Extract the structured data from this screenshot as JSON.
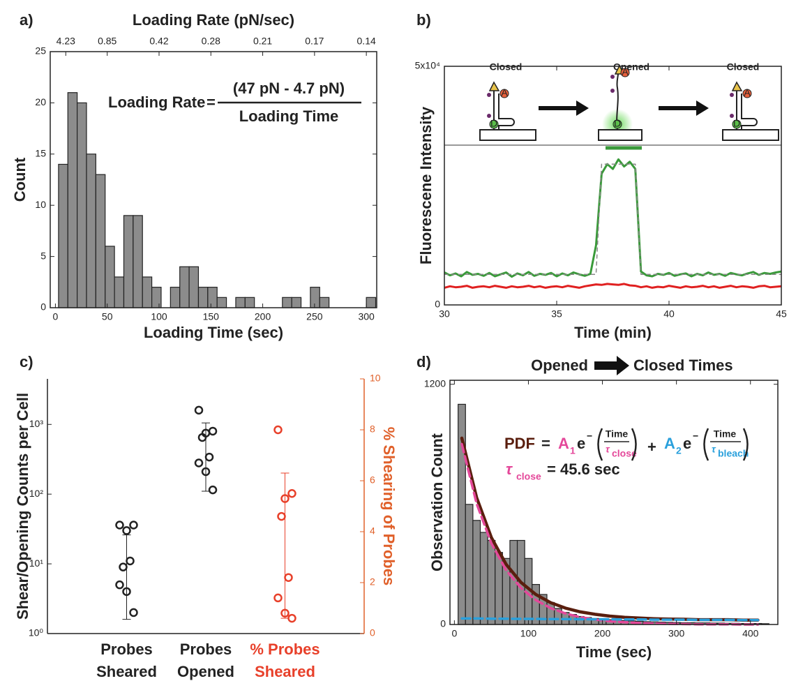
{
  "chart_data": [
    {
      "type": "histogram",
      "panel_label": "a)",
      "xlabel": "Loading Time (sec)",
      "ylabel": "Count",
      "x2label": "Loading Rate (pN/sec)",
      "formula": {
        "lhs": "Loading Rate",
        "eq": "=",
        "numerator": "(47 pN - 4.7 pN)",
        "denominator": "Loading Time"
      },
      "bins": [
        3,
        12,
        21,
        30,
        39,
        48,
        57,
        66,
        75,
        84,
        93,
        102,
        111,
        120,
        129,
        138,
        147,
        156,
        165,
        174,
        183,
        192,
        201,
        210,
        219,
        228,
        237,
        246,
        255,
        264,
        273,
        282,
        291,
        300,
        309
      ],
      "counts": [
        14,
        21,
        20,
        15,
        13,
        6,
        3,
        9,
        9,
        3,
        2,
        0,
        2,
        4,
        4,
        2,
        2,
        1,
        0,
        1,
        1,
        0,
        0,
        0,
        1,
        1,
        0,
        2,
        1,
        0,
        0,
        0,
        0,
        1
      ],
      "color": "#8c8c8c",
      "xlim": [
        -5,
        310
      ],
      "ylim": [
        0,
        25
      ],
      "xticks": [
        0,
        50,
        100,
        150,
        200,
        250,
        300
      ],
      "yticks": [
        0,
        5,
        10,
        15,
        20,
        25
      ],
      "x2ticks": [
        {
          "value": 10,
          "label": "4.23"
        },
        {
          "value": 50,
          "label": "0.85"
        },
        {
          "value": 100,
          "label": "0.42"
        },
        {
          "value": 150,
          "label": "0.28"
        },
        {
          "value": 200,
          "label": "0.21"
        },
        {
          "value": 250,
          "label": "0.17"
        },
        {
          "value": 300,
          "label": "0.14"
        }
      ]
    },
    {
      "type": "line",
      "panel_label": "b)",
      "xlabel": "Time (min)",
      "ylabel": "Fluorescene Intensity",
      "inset_labels": [
        "Closed",
        "Opened",
        "Closed"
      ],
      "fluorophore_labels": [
        "A",
        "D"
      ],
      "x": [
        30,
        30.25,
        30.5,
        30.75,
        31,
        31.25,
        31.5,
        31.75,
        32,
        32.25,
        32.5,
        32.75,
        33,
        33.25,
        33.5,
        33.75,
        34,
        34.25,
        34.5,
        34.75,
        35,
        35.25,
        35.5,
        35.75,
        36,
        36.25,
        36.5,
        36.75,
        37,
        37.25,
        37.5,
        37.75,
        38,
        38.25,
        38.5,
        38.75,
        39,
        39.25,
        39.5,
        39.75,
        40,
        40.25,
        40.5,
        40.75,
        41,
        41.25,
        41.5,
        41.75,
        42,
        42.25,
        42.5,
        42.75,
        43,
        43.25,
        43.5,
        43.75,
        44,
        44.25,
        44.5,
        44.75,
        45
      ],
      "xlim": [
        30,
        45
      ],
      "ylim": [
        0,
        50000
      ],
      "xticks": [
        30,
        35,
        40,
        45
      ],
      "yticks": [
        0,
        {
          "value": 50000,
          "label": "5x10⁴"
        }
      ],
      "series": [
        {
          "color": "#3a9a3a",
          "values": [
            6800,
            6200,
            6600,
            6000,
            6900,
            6300,
            6500,
            6100,
            6700,
            6000,
            6400,
            6800,
            5900,
            6600,
            6200,
            6900,
            6100,
            6500,
            6300,
            6700,
            6000,
            6600,
            6200,
            6800,
            6400,
            6100,
            6500,
            12500,
            27500,
            29500,
            28500,
            30500,
            29000,
            30000,
            28500,
            7000,
            6200,
            6000,
            6500,
            6300,
            6700,
            6100,
            6400,
            6600,
            6000,
            6500,
            6200,
            6800,
            6300,
            6500,
            6100,
            6700,
            6400,
            6200,
            6600,
            6900,
            6300,
            6700,
            6500,
            6800,
            7000
          ]
        },
        {
          "color": "#e02020",
          "values": [
            3600,
            3900,
            3700,
            3800,
            4000,
            3600,
            3800,
            3900,
            3700,
            4000,
            3800,
            3600,
            3900,
            3700,
            3800,
            4000,
            3700,
            3900,
            3600,
            3800,
            3900,
            3700,
            4000,
            3800,
            3600,
            3900,
            4100,
            4300,
            4200,
            4400,
            4300,
            4200,
            4400,
            4100,
            4000,
            3700,
            3900,
            3600,
            3800,
            3700,
            4000,
            3800,
            3600,
            3900,
            3700,
            3800,
            4000,
            3700,
            3900,
            3600,
            3800,
            4000,
            3700,
            3900,
            3800,
            3600,
            3900,
            4000,
            3700,
            3800,
            3900
          ]
        },
        {
          "color": "#888888",
          "dash": true,
          "values": [
            6400,
            6400,
            6400,
            6400,
            6400,
            6400,
            6400,
            6400,
            6400,
            6400,
            6400,
            6400,
            6400,
            6400,
            6400,
            6400,
            6400,
            6400,
            6400,
            6400,
            6400,
            6400,
            6400,
            6400,
            6400,
            6400,
            6400,
            6400,
            29500,
            29500,
            29500,
            29500,
            29500,
            29500,
            29500,
            6400,
            6400,
            6400,
            6400,
            6400,
            6400,
            6400,
            6400,
            6400,
            6400,
            6400,
            6400,
            6400,
            6400,
            6400,
            6400,
            6400,
            6400,
            6400,
            6400,
            6400,
            6400,
            6400,
            6400,
            6400,
            6400
          ]
        }
      ]
    },
    {
      "type": "scatter",
      "panel_label": "c)",
      "ylabel": "Shear/Opening Counts per Cell",
      "y2label": "% Shearing of Probes",
      "y2color": "#e0602a",
      "categories": [
        [
          "Probes",
          "Sheared"
        ],
        [
          "Probes",
          "Opened"
        ],
        [
          "% Probes",
          "Sheared"
        ]
      ],
      "ylog": true,
      "ylim": [
        1,
        4500
      ],
      "yticks": [
        {
          "value": 1,
          "label": "10⁰"
        },
        {
          "value": 10,
          "label": "10¹"
        },
        {
          "value": 100,
          "label": "10²"
        },
        {
          "value": 1000,
          "label": "10³"
        }
      ],
      "y2lim": [
        0,
        10
      ],
      "y2ticks": [
        0,
        2,
        4,
        6,
        8,
        10
      ],
      "series": [
        {
          "color": "#222222",
          "values": [
            36,
            30,
            36,
            9,
            11,
            5,
            4,
            2
          ],
          "range": [
            1.6,
            26
          ]
        },
        {
          "color": "#222222",
          "values": [
            1600,
            750,
            800,
            650,
            340,
            280,
            210,
            115
          ],
          "range": [
            110,
            1050
          ]
        },
        {
          "color": "#e8402a",
          "axis": "y2",
          "values": [
            8,
            5.3,
            5.5,
            4.6,
            2.2,
            1.4,
            0.8,
            0.6
          ],
          "range": [
            0.6,
            6.3
          ]
        }
      ]
    },
    {
      "type": "histogram",
      "panel_label": "d)",
      "title_parts": [
        "Opened",
        "Closed Times"
      ],
      "xlabel": "Time (sec)",
      "ylabel": "Observation Count",
      "formula": {
        "lhs": "PDF",
        "eq": "=",
        "plus": "+",
        "terms": [
          {
            "coef": "A",
            "sub": "1",
            "base": "e",
            "sign": "−",
            "num": "Time",
            "tau": "τ",
            "tau_sub": "close"
          },
          {
            "coef": "A",
            "sub": "2",
            "base": "e",
            "sign": "−",
            "num": "Time",
            "tau": "τ",
            "tau_sub": "bleach"
          }
        ]
      },
      "tau_result": {
        "tau": "τ",
        "sub": "close",
        "rhs": "= 45.6 sec"
      },
      "bins": [
        5,
        15,
        25,
        35,
        45,
        55,
        65,
        75,
        85,
        95,
        105,
        115,
        125,
        135,
        145,
        155,
        165,
        175,
        185,
        195,
        205,
        215,
        225,
        235,
        245,
        255,
        265,
        275,
        285,
        295,
        305,
        315,
        325,
        335,
        345,
        355,
        365,
        375,
        385,
        395,
        405,
        415,
        425
      ],
      "counts": [
        1100,
        600,
        520,
        460,
        420,
        360,
        330,
        420,
        420,
        330,
        200,
        150,
        110,
        80,
        60,
        50,
        40,
        35,
        30,
        28,
        24,
        22,
        20,
        18,
        16,
        14,
        13,
        12,
        11,
        10,
        9,
        9,
        8,
        8,
        7,
        7,
        6,
        6,
        5,
        5,
        5,
        4
      ],
      "color": "#8c8c8c",
      "xlim": [
        -6,
        437
      ],
      "ylim": [
        0,
        1220
      ],
      "xticks": [
        0,
        100,
        200,
        300,
        400
      ],
      "yticks": [
        0,
        1200
      ],
      "fit_x": [
        10,
        30,
        50,
        70,
        90,
        110,
        130,
        150,
        170,
        190,
        210,
        230,
        250,
        270,
        290,
        310,
        330,
        350,
        370,
        390,
        410
      ],
      "fits": [
        {
          "color": "#5a1e0e",
          "values": [
            931,
            634,
            434,
            300,
            210,
            150,
            109,
            82,
            63,
            51,
            42,
            36,
            32,
            29,
            27,
            26,
            24,
            24,
            24,
            22,
            22
          ]
        },
        {
          "color": "#e4489a",
          "dash": true,
          "values": [
            901,
            604,
            405,
            271,
            182,
            122,
            82,
            55,
            37,
            25,
            16,
            11,
            7,
            5,
            3,
            2,
            1,
            1,
            1,
            0,
            0
          ]
        },
        {
          "color": "#2aa0dc",
          "dash": true,
          "values": [
            30,
            30,
            29,
            29,
            28,
            28,
            27,
            27,
            26,
            26,
            26,
            25,
            25,
            24,
            24,
            24,
            23,
            23,
            23,
            22,
            22
          ]
        }
      ]
    }
  ]
}
